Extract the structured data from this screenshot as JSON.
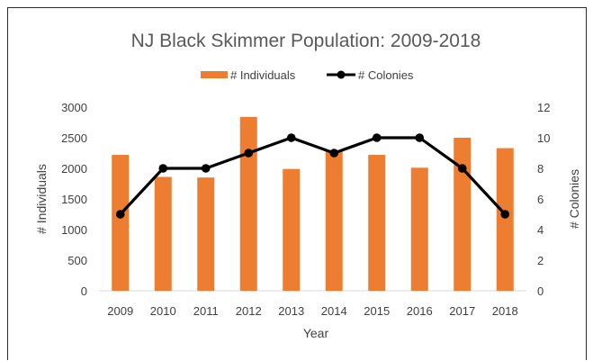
{
  "chart_data": {
    "type": "bar",
    "title": "NJ Black Skimmer Population: 2009-2018",
    "xlabel": "Year",
    "ylabel": "# Individuals",
    "y2label": "# Colonies",
    "categories": [
      "2009",
      "2010",
      "2011",
      "2012",
      "2013",
      "2014",
      "2015",
      "2016",
      "2017",
      "2018"
    ],
    "series": [
      {
        "name": "# Individuals",
        "type": "bar",
        "axis": "left",
        "color": "#ED7D31",
        "values": [
          2220,
          1860,
          1850,
          2840,
          1990,
          2280,
          2220,
          2010,
          2500,
          2330
        ]
      },
      {
        "name": "# Colonies",
        "type": "line",
        "axis": "right",
        "color": "#000000",
        "marker": "circle",
        "values": [
          5,
          8,
          8,
          9,
          10,
          9,
          10,
          10,
          8,
          5
        ]
      }
    ],
    "ylim": [
      0,
      3000
    ],
    "yticks": [
      "0",
      "500",
      "1000",
      "1500",
      "2000",
      "2500",
      "3000"
    ],
    "y2lim": [
      0,
      12
    ],
    "y2ticks": [
      "0",
      "2",
      "4",
      "6",
      "8",
      "10",
      "12"
    ],
    "grid": false,
    "legend": "top"
  }
}
